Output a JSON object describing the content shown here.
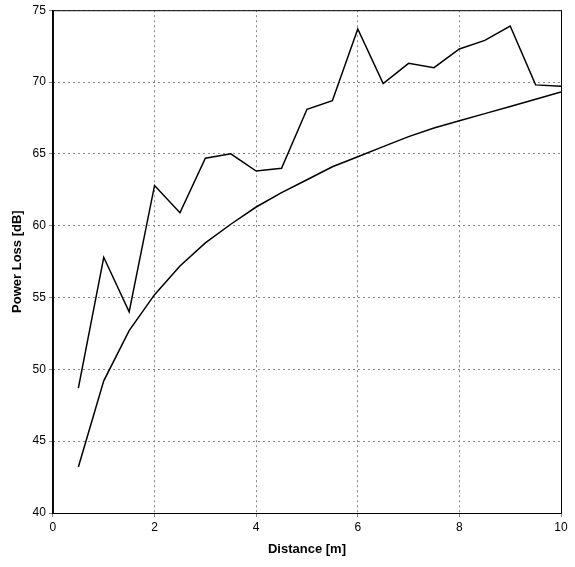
{
  "chart_data": {
    "type": "line",
    "x_label": "Distance [m]",
    "y_label": "Power Loss [dB]",
    "x": [
      0.5,
      1,
      1.5,
      2,
      2.5,
      3,
      3.5,
      4,
      4.5,
      5,
      5.5,
      6,
      6.5,
      7,
      7.5,
      8,
      8.5,
      9,
      9.5,
      10
    ],
    "series": [
      {
        "color": "#000000",
        "line_style": "solid",
        "values": [
          48.7,
          57.8,
          54.0,
          62.8,
          60.9,
          64.7,
          65.0,
          63.8,
          64.0,
          68.1,
          68.7,
          73.7,
          69.9,
          71.3,
          71.0,
          72.3,
          72.9,
          73.9,
          69.8,
          69.7
        ]
      },
      {
        "color": "#000000",
        "line_style": "solid",
        "values": [
          43.2,
          49.2,
          52.7,
          55.2,
          57.2,
          58.8,
          60.1,
          61.3,
          62.3,
          63.2,
          64.1,
          64.8,
          65.5,
          66.2,
          66.8,
          67.3,
          67.8,
          68.3,
          68.8,
          69.3
        ]
      }
    ],
    "xlim": [
      0,
      10
    ],
    "xticks": [
      0,
      2,
      4,
      6,
      8,
      10
    ],
    "ylim": [
      40,
      75
    ],
    "yticks": [
      40,
      45,
      50,
      55,
      60,
      65,
      70,
      75
    ],
    "grid": true
  }
}
